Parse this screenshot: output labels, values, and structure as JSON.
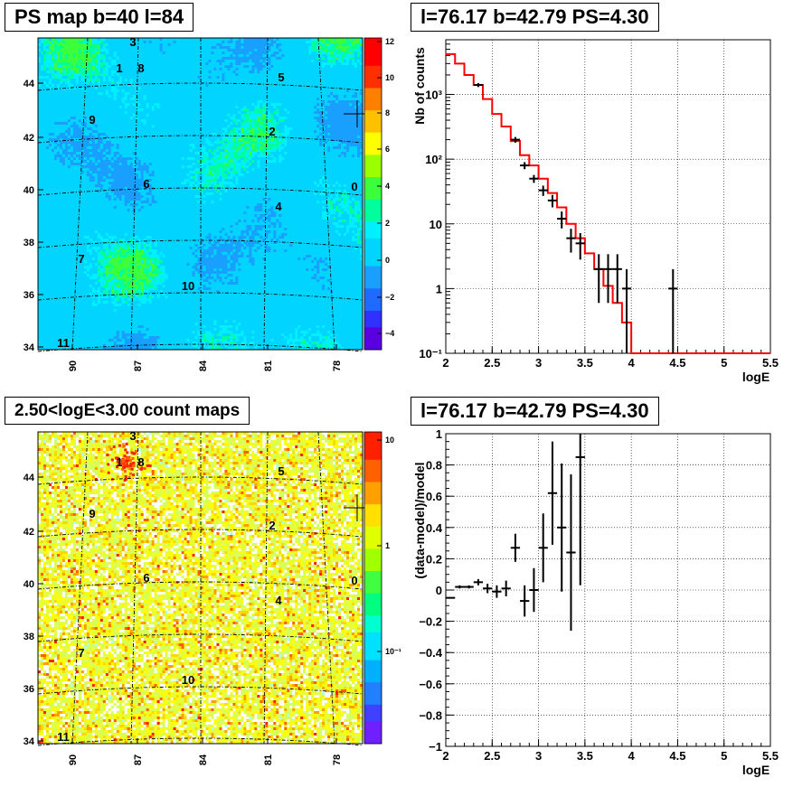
{
  "chart_data": [
    {
      "type": "heatmap",
      "title": "PS map b=40 l=84",
      "xticks": [
        "90",
        "87",
        "84",
        "81",
        "78"
      ],
      "yticks": [
        "44",
        "42",
        "40",
        "38",
        "36",
        "34"
      ],
      "colorbar_ticks": [
        "12",
        "10",
        "8",
        "6",
        "4",
        "2",
        "0",
        "−2",
        "−4"
      ],
      "zlim": [
        -5,
        12
      ],
      "sources": [
        "0",
        "1",
        "2",
        "3",
        "4",
        "5",
        "6",
        "7",
        "8",
        "9",
        "10",
        "11"
      ],
      "grid": "dashed"
    },
    {
      "type": "line",
      "title": "l=76.17 b=42.79 PS=4.30",
      "xlabel": "logE",
      "ylabel": "Nb of counts",
      "xlim": [
        2,
        5.5
      ],
      "yscale": "log",
      "ylim": [
        0.1,
        7000
      ],
      "xticks": [
        "2",
        "2.5",
        "3",
        "3.5",
        "4",
        "4.5",
        "5",
        "5.5"
      ],
      "yticks": [
        "10⁻¹",
        "1",
        "10",
        "10²",
        "10³"
      ],
      "model_bins": [
        2.0,
        2.1,
        2.2,
        2.3,
        2.4,
        2.5,
        2.6,
        2.7,
        2.8,
        2.9,
        3.0,
        3.1,
        3.2,
        3.3,
        3.4,
        3.5,
        3.6,
        3.7,
        3.8,
        3.9,
        4.0,
        5.5
      ],
      "model_values": [
        4200,
        3000,
        2000,
        1400,
        850,
        500,
        320,
        190,
        115,
        80,
        50,
        30,
        18,
        10,
        6,
        3.5,
        2,
        1.1,
        0.6,
        0.3,
        0.1
      ],
      "data_points": [
        {
          "x": 2.35,
          "y": 1400,
          "lo": 1300,
          "hi": 1500
        },
        {
          "x": 2.75,
          "y": 200,
          "lo": 180,
          "hi": 220
        },
        {
          "x": 2.85,
          "y": 80,
          "lo": 70,
          "hi": 90
        },
        {
          "x": 2.95,
          "y": 50,
          "lo": 43,
          "hi": 57
        },
        {
          "x": 3.05,
          "y": 33,
          "lo": 27,
          "hi": 39
        },
        {
          "x": 3.15,
          "y": 23,
          "lo": 18,
          "hi": 28
        },
        {
          "x": 3.25,
          "y": 12,
          "lo": 8.5,
          "hi": 15.5
        },
        {
          "x": 3.35,
          "y": 6,
          "lo": 3.6,
          "hi": 8.4
        },
        {
          "x": 3.45,
          "y": 5,
          "lo": 2.8,
          "hi": 7.2
        },
        {
          "x": 3.65,
          "y": 2,
          "lo": 0.6,
          "hi": 3.4
        },
        {
          "x": 3.75,
          "y": 2,
          "lo": 0.6,
          "hi": 3.4
        },
        {
          "x": 3.85,
          "y": 2,
          "lo": 0.6,
          "hi": 3.4
        },
        {
          "x": 3.95,
          "y": 1,
          "lo": 0.1,
          "hi": 2.0
        },
        {
          "x": 4.45,
          "y": 1,
          "lo": 0.1,
          "hi": 2.0
        }
      ]
    },
    {
      "type": "heatmap",
      "title": "2.50<logE<3.00 count maps",
      "xticks": [
        "90",
        "87",
        "84",
        "81",
        "78"
      ],
      "yticks": [
        "44",
        "42",
        "40",
        "38",
        "36",
        "34"
      ],
      "colorbar_ticks": [
        "10",
        "1",
        "10⁻¹"
      ],
      "zscale": "log",
      "sources": [
        "0",
        "1",
        "2",
        "3",
        "4",
        "5",
        "6",
        "7",
        "8",
        "9",
        "10",
        "11"
      ],
      "grid": "dashed"
    },
    {
      "type": "scatter",
      "title": "l=76.17 b=42.79 PS=4.30",
      "xlabel": "logE",
      "ylabel": "(data-model)/model",
      "xlim": [
        2,
        5.5
      ],
      "ylim": [
        -1,
        1
      ],
      "xticks": [
        "2",
        "2.5",
        "3",
        "3.5",
        "4",
        "4.5",
        "5",
        "5.5"
      ],
      "yticks": [
        "−1",
        "−0.8",
        "−0.6",
        "−0.4",
        "−0.2",
        "0",
        "0.2",
        "0.4",
        "0.6",
        "0.8",
        "1"
      ],
      "points": [
        {
          "x": 2.05,
          "y": -0.05,
          "e": 0.0
        },
        {
          "x": 2.15,
          "y": 0.02,
          "e": 0.01
        },
        {
          "x": 2.25,
          "y": 0.02,
          "e": 0.01
        },
        {
          "x": 2.35,
          "y": 0.05,
          "e": 0.02
        },
        {
          "x": 2.45,
          "y": 0.01,
          "e": 0.03
        },
        {
          "x": 2.55,
          "y": -0.01,
          "e": 0.04
        },
        {
          "x": 2.65,
          "y": 0.01,
          "e": 0.05
        },
        {
          "x": 2.75,
          "y": 0.27,
          "e": 0.09
        },
        {
          "x": 2.85,
          "y": -0.07,
          "e": 0.1
        },
        {
          "x": 2.95,
          "y": 0.0,
          "e": 0.14
        },
        {
          "x": 3.05,
          "y": 0.27,
          "e": 0.22
        },
        {
          "x": 3.15,
          "y": 0.62,
          "e": 0.33
        },
        {
          "x": 3.25,
          "y": 0.4,
          "e": 0.41
        },
        {
          "x": 3.35,
          "y": 0.24,
          "e": 0.5
        },
        {
          "x": 3.45,
          "y": 0.85,
          "e": 0.82
        }
      ]
    }
  ]
}
